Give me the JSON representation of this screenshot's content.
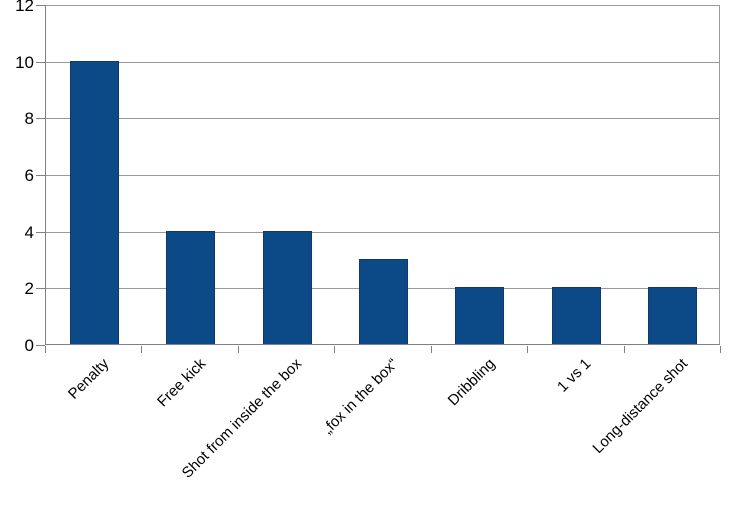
{
  "chart_data": {
    "type": "bar",
    "title": "",
    "xlabel": "",
    "ylabel": "",
    "categories": [
      "Penalty",
      "Free kick",
      "Shot from inside the box",
      "„fox in the box“",
      "Dribbling",
      "1 vs 1",
      "Long-distance shot"
    ],
    "values": [
      10,
      4,
      4,
      3,
      2,
      2,
      2
    ],
    "ylim": [
      0,
      12
    ],
    "yticks": [
      0,
      2,
      4,
      6,
      8,
      10,
      12
    ],
    "grid": "horizontal",
    "legend_position": "none",
    "x_label_rotation_deg": 45,
    "colors": {
      "bar_fill": "#0b4a86",
      "bar_border": "#0d3a66",
      "gridline": "#9a9a9a",
      "axis": "#808080",
      "text": "#000000",
      "background": "#ffffff"
    }
  }
}
